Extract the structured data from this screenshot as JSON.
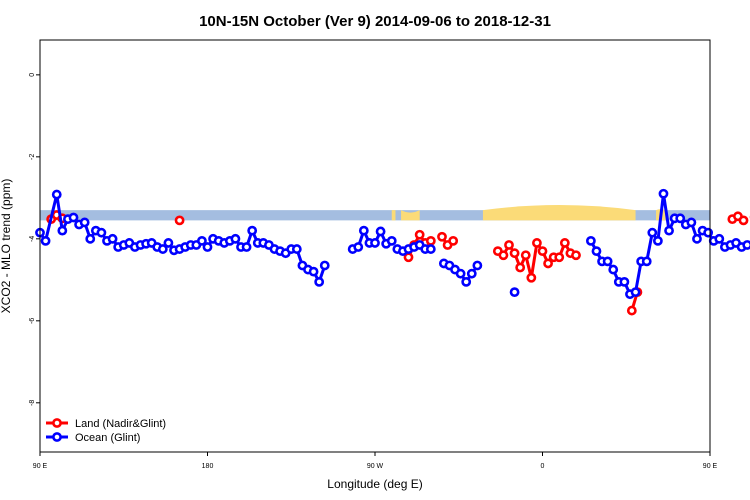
{
  "chart_data": {
    "type": "line",
    "title": "10N-15N October (Ver 9)   2014-09-06 to 2018-12-31",
    "xlabel": "Longitude (deg E)",
    "ylabel": "XCO2 - MLO trend (ppm)",
    "xlim": [
      90,
      450
    ],
    "ylim": [
      -9.2,
      0.85
    ],
    "x_ticks": [
      {
        "value": 90,
        "label": "90 E"
      },
      {
        "value": 180,
        "label": "180"
      },
      {
        "value": 270,
        "label": "90 W"
      },
      {
        "value": 360,
        "label": "0"
      },
      {
        "value": 450,
        "label": "90 E"
      },
      {
        "value": 540,
        "label": "180"
      }
    ],
    "y_ticks": [
      {
        "value": 0,
        "label": "0"
      },
      {
        "value": -2,
        "label": "-2"
      },
      {
        "value": -4,
        "label": "-4"
      },
      {
        "value": -6,
        "label": "-6"
      },
      {
        "value": -8,
        "label": "-8"
      }
    ],
    "land_band": {
      "y_range": [
        -3.55,
        -3.3
      ],
      "ocean_color": "#a4bde0",
      "land_color": "#fbdb78",
      "land_segments": [
        {
          "x0": 279,
          "x1": 281,
          "peak": -3.3
        },
        {
          "x0": 284,
          "x1": 294,
          "peak": -3.42
        },
        {
          "x0": 328,
          "x1": 410,
          "peak": -3.05
        },
        {
          "x0": 421,
          "x1": 426,
          "peak": -3.25
        }
      ]
    },
    "series": [
      {
        "name": "Land (Nadir&Glint)",
        "color": "#ff0000",
        "points": [
          [
            96,
            -3.52
          ],
          [
            99,
            -3.42
          ],
          [
            102,
            -3.5
          ],
          [
            165,
            -3.55
          ],
          [
            288,
            -4.45
          ],
          [
            291,
            -4.15
          ],
          [
            294,
            -3.9
          ],
          [
            297,
            -4.1
          ],
          [
            300,
            -4.05
          ],
          [
            306,
            -3.95
          ],
          [
            309,
            -4.15
          ],
          [
            312,
            -4.05
          ],
          [
            336,
            -4.3
          ],
          [
            339,
            -4.4
          ],
          [
            342,
            -4.15
          ],
          [
            345,
            -4.35
          ],
          [
            348,
            -4.7
          ],
          [
            351,
            -4.4
          ],
          [
            354,
            -4.95
          ],
          [
            357,
            -4.1
          ],
          [
            360,
            -4.3
          ],
          [
            363,
            -4.6
          ],
          [
            366,
            -4.45
          ],
          [
            369,
            -4.45
          ],
          [
            372,
            -4.1
          ],
          [
            375,
            -4.35
          ],
          [
            378,
            -4.4
          ],
          [
            408,
            -5.75
          ],
          [
            411,
            -5.3
          ],
          [
            462,
            -3.52
          ],
          [
            465,
            -3.45
          ],
          [
            468,
            -3.55
          ],
          [
            474,
            -3.47
          ],
          [
            477,
            -3.5
          ]
        ]
      },
      {
        "name": "Ocean (Glint)",
        "color": "#0000ff",
        "points": [
          [
            [
              90,
              -3.85
            ],
            [
              93,
              -4.05
            ],
            [
              99,
              -2.92
            ],
            [
              102,
              -3.8
            ],
            [
              105,
              -3.52
            ],
            [
              108,
              -3.48
            ],
            [
              111,
              -3.65
            ],
            [
              114,
              -3.6
            ],
            [
              117,
              -4.0
            ],
            [
              120,
              -3.8
            ],
            [
              123,
              -3.85
            ],
            [
              126,
              -4.05
            ],
            [
              129,
              -4.0
            ],
            [
              132,
              -4.2
            ],
            [
              135,
              -4.15
            ],
            [
              138,
              -4.1
            ],
            [
              141,
              -4.2
            ],
            [
              144,
              -4.15
            ],
            [
              147,
              -4.12
            ],
            [
              150,
              -4.1
            ],
            [
              153,
              -4.2
            ],
            [
              156,
              -4.25
            ],
            [
              159,
              -4.1
            ],
            [
              162,
              -4.28
            ],
            [
              165,
              -4.25
            ],
            [
              168,
              -4.2
            ],
            [
              171,
              -4.15
            ],
            [
              174,
              -4.15
            ],
            [
              177,
              -4.05
            ],
            [
              180,
              -4.2
            ],
            [
              183,
              -4.0
            ],
            [
              186,
              -4.05
            ],
            [
              189,
              -4.1
            ],
            [
              192,
              -4.05
            ],
            [
              195,
              -4.0
            ],
            [
              198,
              -4.2
            ],
            [
              201,
              -4.2
            ],
            [
              204,
              -3.8
            ],
            [
              207,
              -4.1
            ],
            [
              210,
              -4.1
            ],
            [
              213,
              -4.15
            ],
            [
              216,
              -4.25
            ],
            [
              219,
              -4.3
            ],
            [
              222,
              -4.35
            ],
            [
              225,
              -4.25
            ],
            [
              228,
              -4.25
            ],
            [
              231,
              -4.65
            ],
            [
              234,
              -4.75
            ],
            [
              237,
              -4.8
            ],
            [
              240,
              -5.05
            ],
            [
              243,
              -4.65
            ]
          ],
          [
            [
              258,
              -4.25
            ],
            [
              261,
              -4.2
            ],
            [
              264,
              -3.8
            ],
            [
              267,
              -4.1
            ],
            [
              270,
              -4.1
            ],
            [
              273,
              -3.82
            ],
            [
              276,
              -4.12
            ],
            [
              279,
              -4.05
            ]
          ],
          [
            [
              282,
              -4.25
            ],
            [
              285,
              -4.3
            ],
            [
              288,
              -4.25
            ],
            [
              291,
              -4.2
            ],
            [
              294,
              -4.15
            ],
            [
              297,
              -4.25
            ],
            [
              300,
              -4.25
            ]
          ],
          [
            [
              307,
              -4.6
            ],
            [
              310,
              -4.65
            ],
            [
              313,
              -4.75
            ],
            [
              316,
              -4.85
            ],
            [
              319,
              -5.05
            ],
            [
              322,
              -4.85
            ],
            [
              325,
              -4.65
            ]
          ],
          [
            [
              345,
              -5.3
            ]
          ],
          [
            [
              386,
              -4.05
            ],
            [
              389,
              -4.3
            ],
            [
              392,
              -4.55
            ],
            [
              395,
              -4.55
            ],
            [
              398,
              -4.75
            ],
            [
              401,
              -5.05
            ],
            [
              404,
              -5.05
            ],
            [
              407,
              -5.35
            ],
            [
              410,
              -5.3
            ],
            [
              413,
              -4.55
            ],
            [
              416,
              -4.55
            ],
            [
              419,
              -3.85
            ],
            [
              422,
              -4.05
            ],
            [
              425,
              -2.9
            ],
            [
              428,
              -3.8
            ],
            [
              431,
              -3.5
            ],
            [
              434,
              -3.5
            ],
            [
              437,
              -3.65
            ],
            [
              440,
              -3.6
            ],
            [
              443,
              -4.0
            ],
            [
              446,
              -3.8
            ],
            [
              449,
              -3.85
            ],
            [
              452,
              -4.05
            ],
            [
              455,
              -4.0
            ],
            [
              458,
              -4.2
            ],
            [
              461,
              -4.15
            ],
            [
              464,
              -4.1
            ],
            [
              467,
              -4.2
            ],
            [
              470,
              -4.15
            ]
          ]
        ]
      }
    ],
    "legend_position": "bottom-left"
  }
}
